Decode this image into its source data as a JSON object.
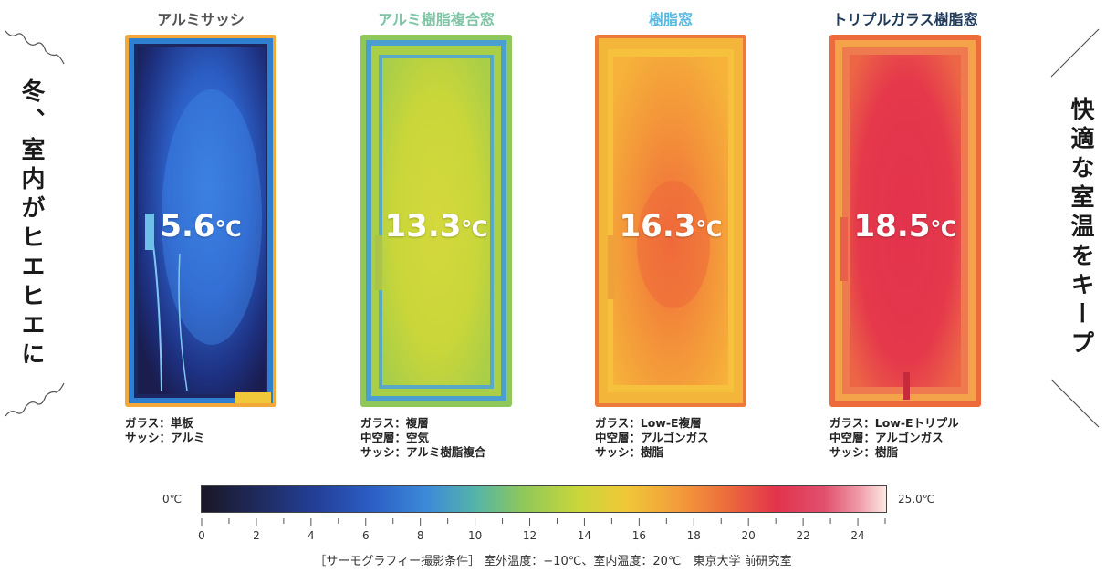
{
  "left_slogan": "冬、室内がヒエヒエに",
  "right_slogan": "快適な室温をキープ",
  "panels": [
    {
      "title": "アルミサッシ",
      "title_color": "#555555",
      "temperature": "5.6",
      "unit": "℃",
      "specs": [
        "ガラス：単板",
        "サッシ：アルミ"
      ]
    },
    {
      "title": "アルミ樹脂複合窓",
      "title_color": "#7fc5a5",
      "temperature": "13.3",
      "unit": "℃",
      "specs": [
        "ガラス：複層",
        "中空層：空気",
        "サッシ：アルミ樹脂複合"
      ]
    },
    {
      "title": "樹脂窓",
      "title_color": "#5bb8de",
      "temperature": "16.3",
      "unit": "℃",
      "specs": [
        "ガラス：Low-E複層",
        "中空層：アルゴンガス",
        "サッシ：樹脂"
      ]
    },
    {
      "title": "トリプルガラス樹脂窓",
      "title_color": "#1f3b5c",
      "temperature": "18.5",
      "unit": "℃",
      "specs": [
        "ガラス：Low-Eトリプル",
        "中空層：アルゴンガス",
        "サッシ：樹脂"
      ]
    }
  ],
  "scale": {
    "min_label": "0℃",
    "max_label": "25.0℃",
    "ticks": [
      "0",
      "2",
      "4",
      "6",
      "8",
      "10",
      "12",
      "14",
      "16",
      "18",
      "20",
      "22",
      "24"
    ]
  },
  "caption": "［サーモグラフィー撮影条件］ 室外温度：−10℃、室内温度：20℃　東京大学 前研究室"
}
